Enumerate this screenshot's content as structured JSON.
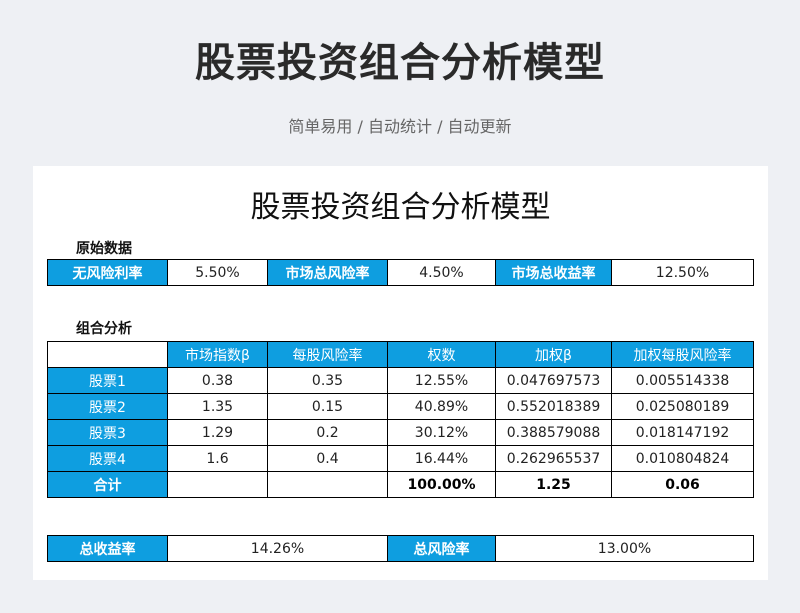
{
  "header": {
    "title": "股票投资组合分析模型",
    "subtitle": "简单易用 / 自动统计 / 自动更新"
  },
  "sheet": {
    "title": "股票投资组合分析模型",
    "raw_section": {
      "label": "原始数据",
      "cells": [
        {
          "label": "无风险利率",
          "value": "5.50%"
        },
        {
          "label": "市场总风险率",
          "value": "4.50%"
        },
        {
          "label": "市场总收益率",
          "value": "12.50%"
        }
      ]
    },
    "portfolio_section": {
      "label": "组合分析",
      "headers": [
        "",
        "市场指数β",
        "每股风险率",
        "权数",
        "加权β",
        "加权每股风险率"
      ],
      "rows": [
        {
          "name": "股票1",
          "beta": "0.38",
          "risk": "0.35",
          "weight": "12.55%",
          "wbeta": "0.047697573",
          "wrisk": "0.005514338"
        },
        {
          "name": "股票2",
          "beta": "1.35",
          "risk": "0.15",
          "weight": "40.89%",
          "wbeta": "0.552018389",
          "wrisk": "0.025080189"
        },
        {
          "name": "股票3",
          "beta": "1.29",
          "risk": "0.2",
          "weight": "30.12%",
          "wbeta": "0.388579088",
          "wrisk": "0.018147192"
        },
        {
          "name": "股票4",
          "beta": "1.6",
          "risk": "0.4",
          "weight": "16.44%",
          "wbeta": "0.262965537",
          "wrisk": "0.010804824"
        }
      ],
      "total": {
        "name": "合计",
        "beta": "",
        "risk": "",
        "weight": "100.00%",
        "wbeta": "1.25",
        "wrisk": "0.06"
      }
    },
    "summary": {
      "return_label": "总收益率",
      "return_value": "14.26%",
      "risk_label": "总风险率",
      "risk_value": "13.00%"
    }
  },
  "colors": {
    "accent": "#0e9ee0",
    "background": "#eef0f4"
  }
}
